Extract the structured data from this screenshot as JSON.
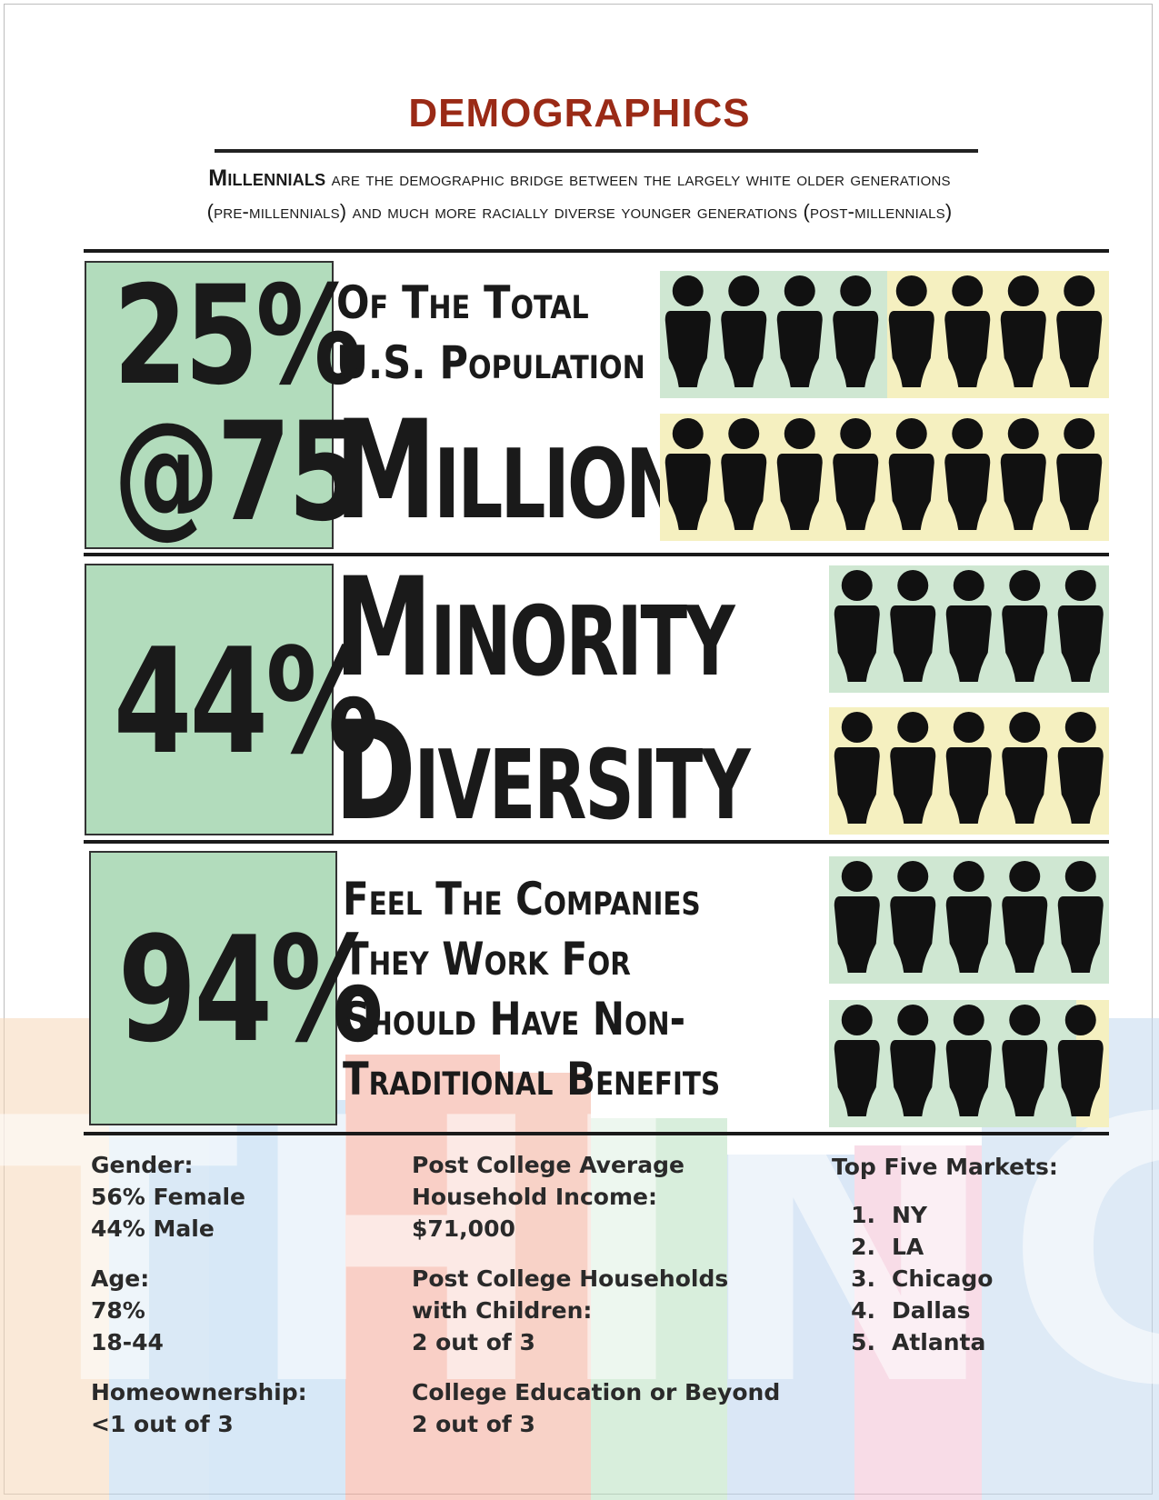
{
  "header": {
    "title": "DEMOGRAPHICS",
    "subtitle_lead": "Millennials",
    "subtitle_line1": "are the demographic bridge between the largely white older generations",
    "subtitle_line2": "(pre-millennials) and much more racially diverse younger generations (post-millennials)"
  },
  "stats": [
    {
      "value_line1": "25%",
      "value_line2": "@75",
      "caption_line1": "Of The Total",
      "caption_line2": "U.S. Population",
      "caption_big": "Million"
    },
    {
      "value": "44%",
      "caption_line1": "Minority",
      "caption_line2": "Diversity"
    },
    {
      "value": "94%",
      "caption_line1": "Feel The Companies",
      "caption_line2": "They Work For",
      "caption_line3": "Should Have Non-",
      "caption_line4": "Traditional Benefits"
    }
  ],
  "colors": {
    "title": "#9a2a16",
    "stat_box": "#b2dcbc",
    "tile_green": "#cfe7d2",
    "tile_yellow": "#f5f0c0",
    "figure": "#111111"
  },
  "icons": {
    "person": "person-icon"
  },
  "details": {
    "gender": {
      "label": "Gender:",
      "line1": "56% Female",
      "line2": "44% Male"
    },
    "age": {
      "label": "Age:",
      "line1": "78%",
      "line2": "18-44"
    },
    "homeownership": {
      "label": "Homeownership:",
      "line1": "<1 out of 3"
    },
    "income": {
      "label_line1": "Post College Average",
      "label_line2": "Household Income:",
      "value": "$71,000"
    },
    "children": {
      "label_line1": "Post College Households",
      "label_line2": "with Children:",
      "value": "2 out of 3"
    },
    "education": {
      "label": "College Education or Beyond",
      "value": "2 out of 3"
    },
    "markets": {
      "label": "Top Five Markets:",
      "items": [
        {
          "num": "1.",
          "name": "NY"
        },
        {
          "num": "2.",
          "name": "LA"
        },
        {
          "num": "3.",
          "name": "Chicago"
        },
        {
          "num": "4.",
          "name": "Dallas"
        },
        {
          "num": "5.",
          "name": "Atlanta"
        }
      ]
    }
  },
  "watermark": {
    "text": "THINGS"
  }
}
